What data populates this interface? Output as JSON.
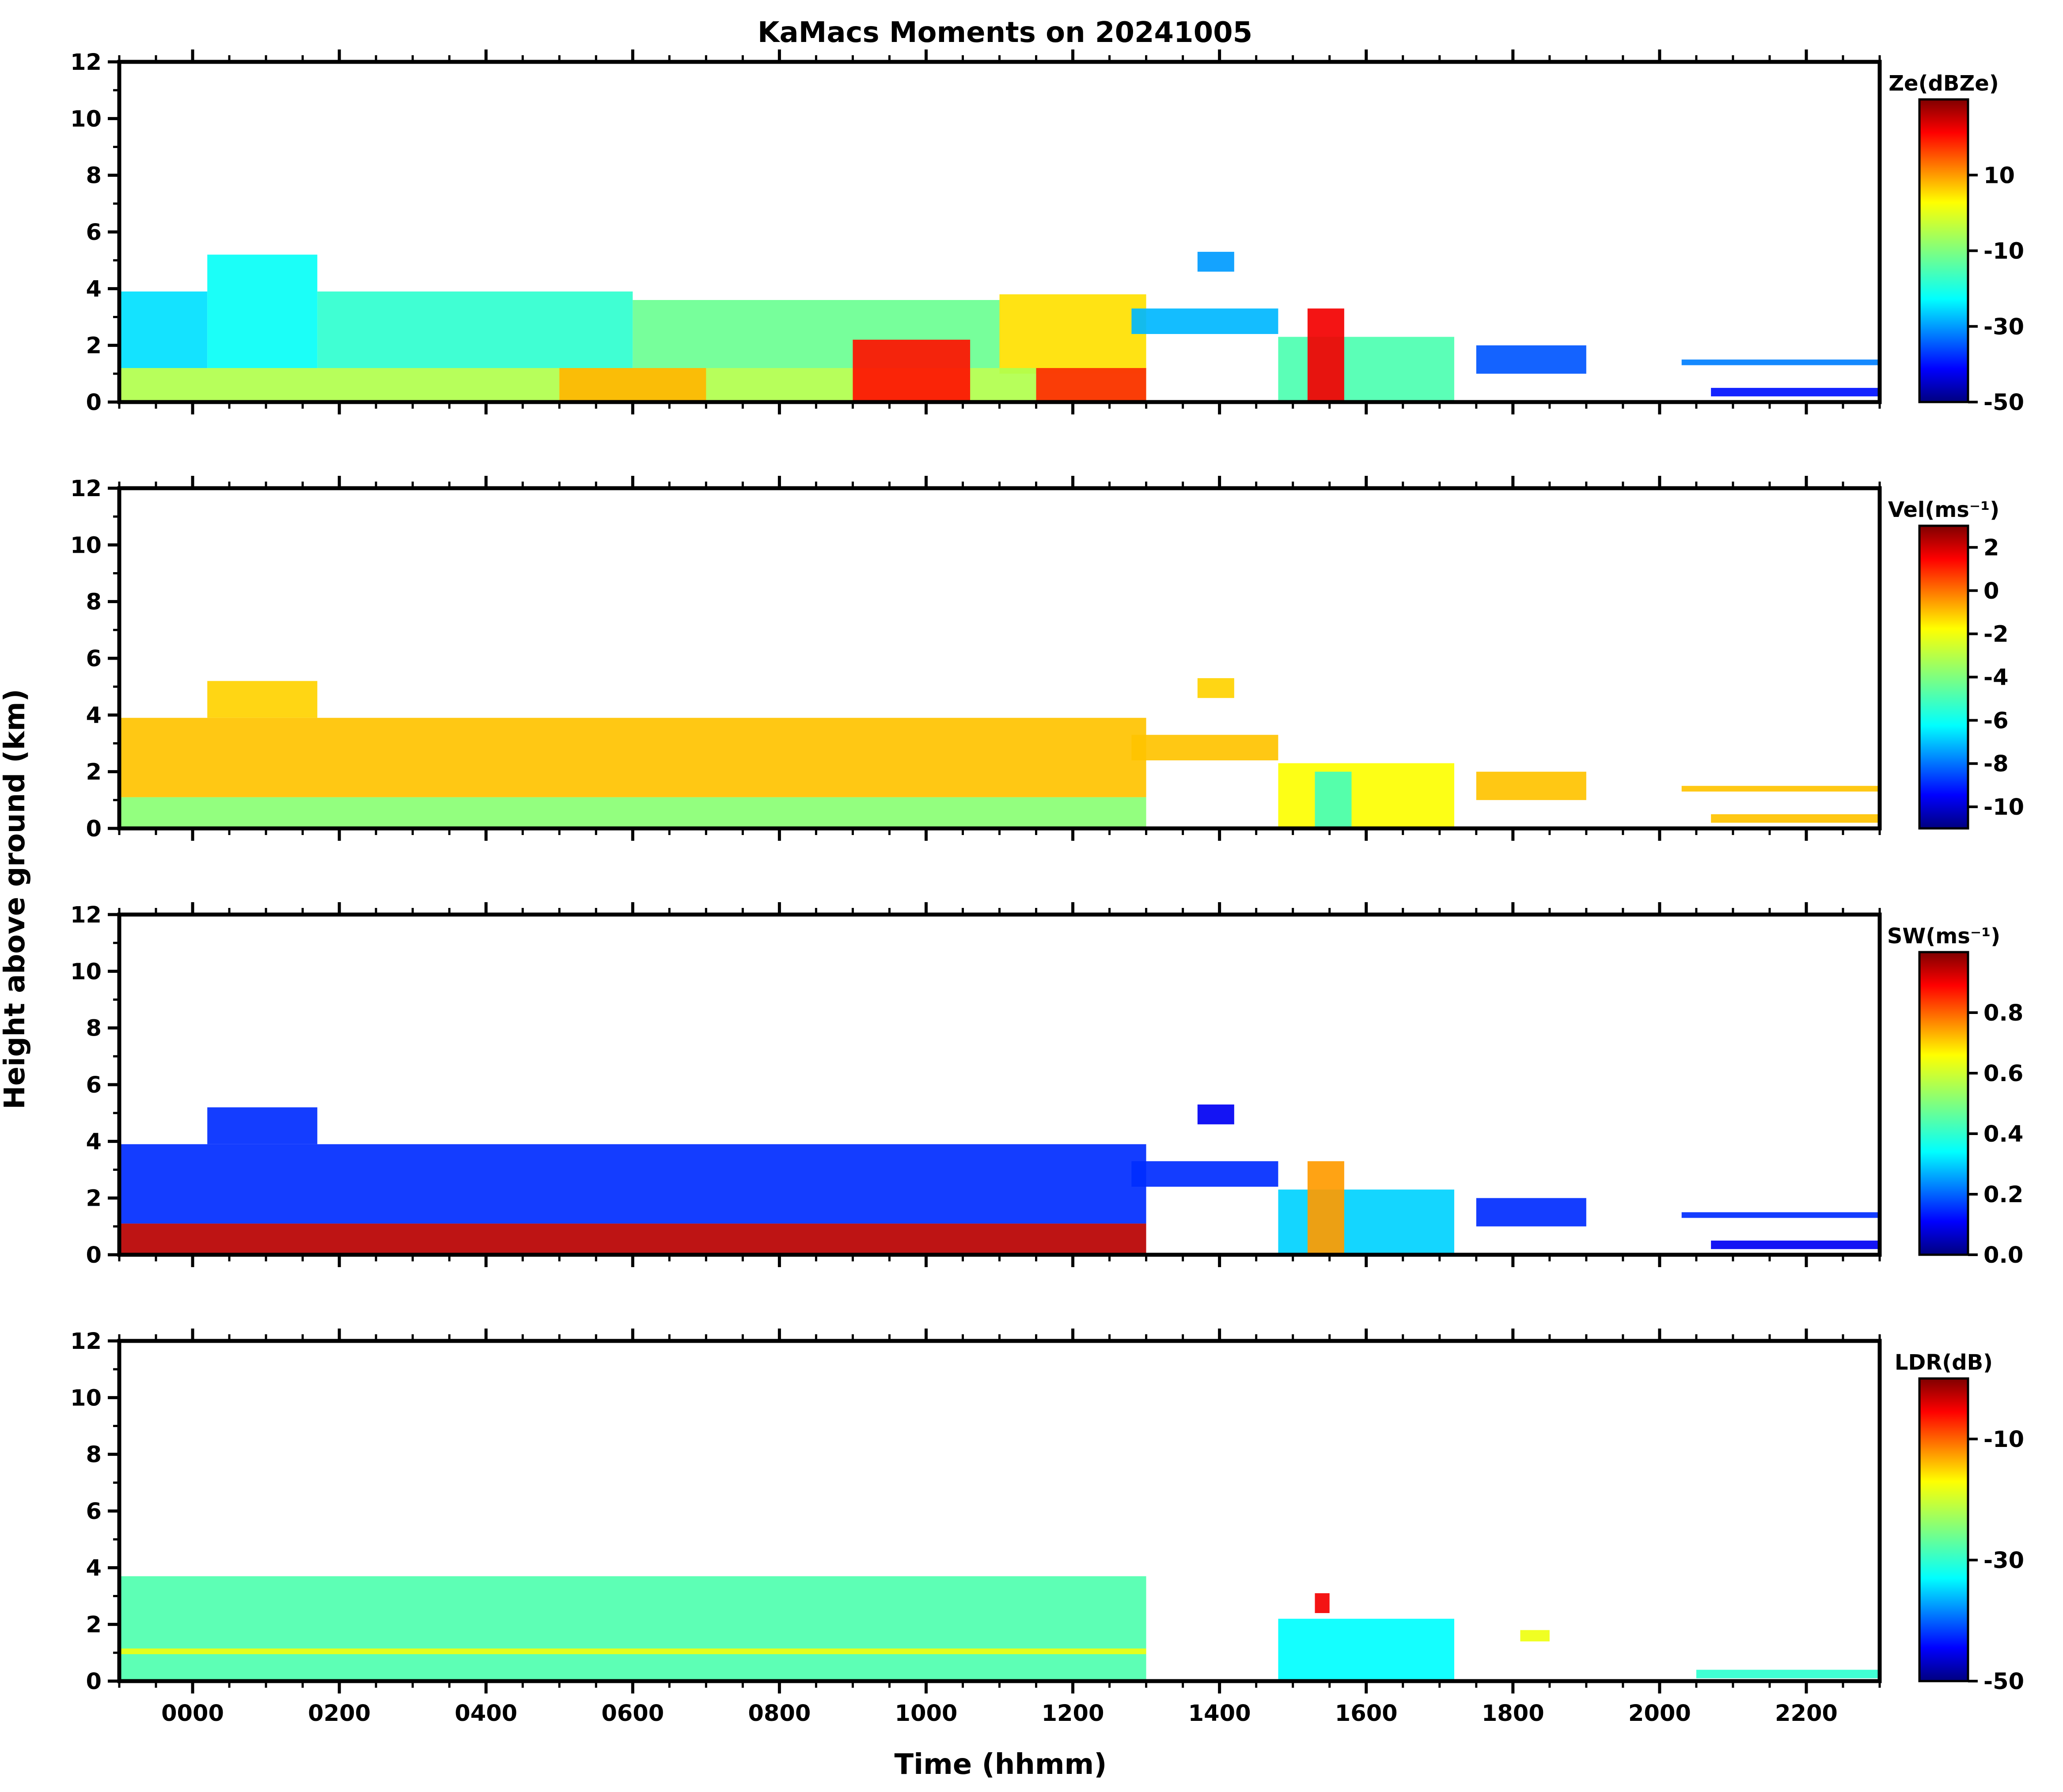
{
  "figure_title": "KaMacs Moments on 20241005",
  "chart_data": {
    "type": "heatmap",
    "title": "KaMacs Moments on 20241005",
    "xlabel": "Time (hhmm)",
    "ylabel": "Height above ground (km)",
    "x_ticks": [
      "0000",
      "0200",
      "0400",
      "0600",
      "0800",
      "1000",
      "1200",
      "1400",
      "1600",
      "1800",
      "2000",
      "2200"
    ],
    "xlim_hours": [
      -1.0,
      23.0
    ],
    "ylim_km": [
      0,
      12
    ],
    "y_ticks": [
      0,
      2,
      4,
      6,
      8,
      10,
      12
    ],
    "panels": [
      {
        "name": "reflectivity",
        "colorbar_label": "Ze(dBZe)",
        "cb_range": [
          -50,
          30
        ],
        "cb_ticks": [
          -50,
          -30,
          -10,
          10
        ],
        "cb_tick_labels": [
          "-50",
          "-30",
          "-10",
          "10"
        ],
        "features": [
          {
            "t0": -1.0,
            "t1": 0.2,
            "b": 1.2,
            "tp": 3.9,
            "v": -25
          },
          {
            "t0": 0.2,
            "t1": 1.7,
            "b": 1.2,
            "tp": 5.2,
            "v": -22
          },
          {
            "t0": 1.7,
            "t1": 6.0,
            "b": 1.2,
            "tp": 3.9,
            "v": -18
          },
          {
            "t0": 6.0,
            "t1": 11.0,
            "b": 1.2,
            "tp": 3.6,
            "v": -12
          },
          {
            "t0": 11.0,
            "t1": 13.0,
            "b": 1.0,
            "tp": 3.8,
            "v": 5
          },
          {
            "t0": -1.0,
            "t1": 13.0,
            "b": 0.0,
            "tp": 1.2,
            "v": -5
          },
          {
            "t0": 5.0,
            "t1": 7.0,
            "b": 0.0,
            "tp": 1.2,
            "v": 8
          },
          {
            "t0": 9.0,
            "t1": 10.6,
            "b": 0.0,
            "tp": 2.2,
            "v": 20
          },
          {
            "t0": 11.5,
            "t1": 13.0,
            "b": 0.0,
            "tp": 1.2,
            "v": 18
          },
          {
            "t0": 12.8,
            "t1": 14.8,
            "b": 2.4,
            "tp": 3.3,
            "v": -28
          },
          {
            "t0": 13.7,
            "t1": 14.2,
            "b": 4.6,
            "tp": 5.3,
            "v": -30
          },
          {
            "t0": 14.8,
            "t1": 17.2,
            "b": 0.0,
            "tp": 2.3,
            "v": -15
          },
          {
            "t0": 15.2,
            "t1": 15.7,
            "b": 0.0,
            "tp": 3.3,
            "v": 22
          },
          {
            "t0": 17.5,
            "t1": 19.0,
            "b": 1.0,
            "tp": 2.0,
            "v": -35
          },
          {
            "t0": 20.3,
            "t1": 23.0,
            "b": 1.3,
            "tp": 1.5,
            "v": -32
          },
          {
            "t0": 20.7,
            "t1": 23.0,
            "b": 0.2,
            "tp": 0.5,
            "v": -40
          }
        ]
      },
      {
        "name": "velocity",
        "colorbar_label": "Vel(ms⁻¹)",
        "cb_range": [
          -11,
          3
        ],
        "cb_ticks": [
          2,
          0,
          -2,
          -4,
          -6,
          -8,
          -10
        ],
        "cb_tick_labels": [
          "2",
          "0",
          "-2",
          "-4",
          "-6",
          "-8",
          "-10"
        ],
        "features": [
          {
            "t0": -1.0,
            "t1": 13.0,
            "b": 1.1,
            "tp": 3.9,
            "v": -1.0
          },
          {
            "t0": 0.2,
            "t1": 1.7,
            "b": 3.9,
            "tp": 5.2,
            "v": -1.2
          },
          {
            "t0": -1.0,
            "t1": 13.0,
            "b": 0.0,
            "tp": 1.1,
            "v": -3.8
          },
          {
            "t0": 12.8,
            "t1": 14.8,
            "b": 2.4,
            "tp": 3.3,
            "v": -1.0
          },
          {
            "t0": 13.7,
            "t1": 14.2,
            "b": 4.6,
            "tp": 5.3,
            "v": -1.2
          },
          {
            "t0": 14.8,
            "t1": 17.2,
            "b": 0.0,
            "tp": 2.3,
            "v": -1.8
          },
          {
            "t0": 15.3,
            "t1": 15.8,
            "b": 0.0,
            "tp": 2.0,
            "v": -5.0
          },
          {
            "t0": 17.5,
            "t1": 19.0,
            "b": 1.0,
            "tp": 2.0,
            "v": -1.0
          },
          {
            "t0": 20.3,
            "t1": 23.0,
            "b": 1.3,
            "tp": 1.5,
            "v": -1.0
          },
          {
            "t0": 20.7,
            "t1": 23.0,
            "b": 0.2,
            "tp": 0.5,
            "v": -1.0
          }
        ]
      },
      {
        "name": "spectrum-width",
        "colorbar_label": "SW(ms⁻¹)",
        "cb_range": [
          0,
          1
        ],
        "cb_ticks": [
          0.0,
          0.2,
          0.4,
          0.6,
          0.8
        ],
        "cb_tick_labels": [
          "0.0",
          "0.2",
          "0.4",
          "0.6",
          "0.8"
        ],
        "features": [
          {
            "t0": -1.0,
            "t1": 13.0,
            "b": 1.1,
            "tp": 3.9,
            "v": 0.15
          },
          {
            "t0": 0.2,
            "t1": 1.7,
            "b": 3.9,
            "tp": 5.2,
            "v": 0.15
          },
          {
            "t0": -1.0,
            "t1": 13.0,
            "b": 0.0,
            "tp": 1.1,
            "v": 0.95
          },
          {
            "t0": 12.8,
            "t1": 14.8,
            "b": 2.4,
            "tp": 3.3,
            "v": 0.15
          },
          {
            "t0": 13.7,
            "t1": 14.2,
            "b": 4.6,
            "tp": 5.3,
            "v": 0.1
          },
          {
            "t0": 14.8,
            "t1": 17.2,
            "b": 0.0,
            "tp": 2.3,
            "v": 0.3
          },
          {
            "t0": 15.2,
            "t1": 15.7,
            "b": 0.0,
            "tp": 3.3,
            "v": 0.75
          },
          {
            "t0": 17.5,
            "t1": 19.0,
            "b": 1.0,
            "tp": 2.0,
            "v": 0.15
          },
          {
            "t0": 20.3,
            "t1": 23.0,
            "b": 1.3,
            "tp": 1.5,
            "v": 0.15
          },
          {
            "t0": 20.7,
            "t1": 23.0,
            "b": 0.2,
            "tp": 0.5,
            "v": 0.1
          }
        ]
      },
      {
        "name": "ldr",
        "colorbar_label": "LDR(dB)",
        "cb_range": [
          -50,
          0
        ],
        "cb_ticks": [
          -50,
          -30,
          -10
        ],
        "cb_tick_labels": [
          "-50",
          "-30",
          "-10"
        ],
        "features": [
          {
            "t0": -1.0,
            "t1": 13.0,
            "b": 0.0,
            "tp": 3.7,
            "v": -28
          },
          {
            "t0": -1.0,
            "t1": 13.0,
            "b": 0.95,
            "tp": 1.15,
            "v": -18
          },
          {
            "t0": 14.8,
            "t1": 17.2,
            "b": 0.0,
            "tp": 2.2,
            "v": -33
          },
          {
            "t0": 15.3,
            "t1": 15.5,
            "b": 2.4,
            "tp": 3.1,
            "v": -5
          },
          {
            "t0": 18.1,
            "t1": 18.5,
            "b": 1.4,
            "tp": 1.8,
            "v": -18
          },
          {
            "t0": 20.5,
            "t1": 23.0,
            "b": 0.1,
            "tp": 0.4,
            "v": -30
          }
        ]
      }
    ]
  }
}
